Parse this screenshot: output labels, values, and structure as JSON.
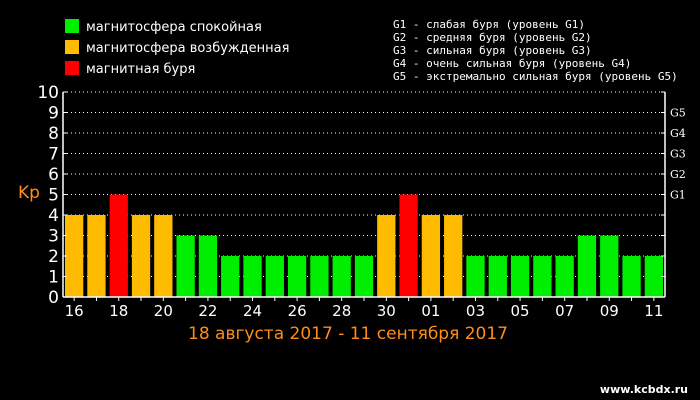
{
  "legend": [
    {
      "label": "магнитосфера спокойная",
      "color": "#00ee00"
    },
    {
      "label": "магнитосфера возбужденная",
      "color": "#ffbb00"
    },
    {
      "label": "магнитная буря",
      "color": "#ff0000"
    }
  ],
  "storm_levels": [
    "G1 - слабая буря (уровень G1)",
    "G2 - средняя буря (уровень G2)",
    "G3 - сильная буря (уровень G3)",
    "G4 - очень сильная буря (уровень G4)",
    "G5 - экстремально сильная буря (уровень G5)"
  ],
  "date_range": "18 августа 2017 - 11 сентября 2017",
  "watermark": "www.kcbdx.ru",
  "chart_data": {
    "type": "bar",
    "ylabel": "Kp",
    "ylim": [
      0,
      10
    ],
    "y_ticks": [
      "0",
      "1",
      "2",
      "3",
      "4",
      "5",
      "6",
      "7",
      "8",
      "9",
      "10"
    ],
    "right_axis_labels": [
      {
        "label": "G1",
        "kp": 5
      },
      {
        "label": "G2",
        "kp": 6
      },
      {
        "label": "G3",
        "kp": 7
      },
      {
        "label": "G4",
        "kp": 8
      },
      {
        "label": "G5",
        "kp": 9
      }
    ],
    "x_tick_labels": [
      "16",
      "18",
      "20",
      "22",
      "24",
      "26",
      "28",
      "30",
      "01",
      "03",
      "05",
      "07",
      "09",
      "11"
    ],
    "grid": true,
    "values": [
      4,
      4,
      5,
      4,
      4,
      3,
      3,
      2,
      2,
      2,
      2,
      2,
      2,
      2,
      4,
      5,
      4,
      4,
      2,
      2,
      2,
      2,
      2,
      3,
      3,
      2,
      2
    ],
    "colors": {
      "quiet": "#00ee00",
      "active": "#ffbb00",
      "storm": "#ff0000"
    }
  }
}
